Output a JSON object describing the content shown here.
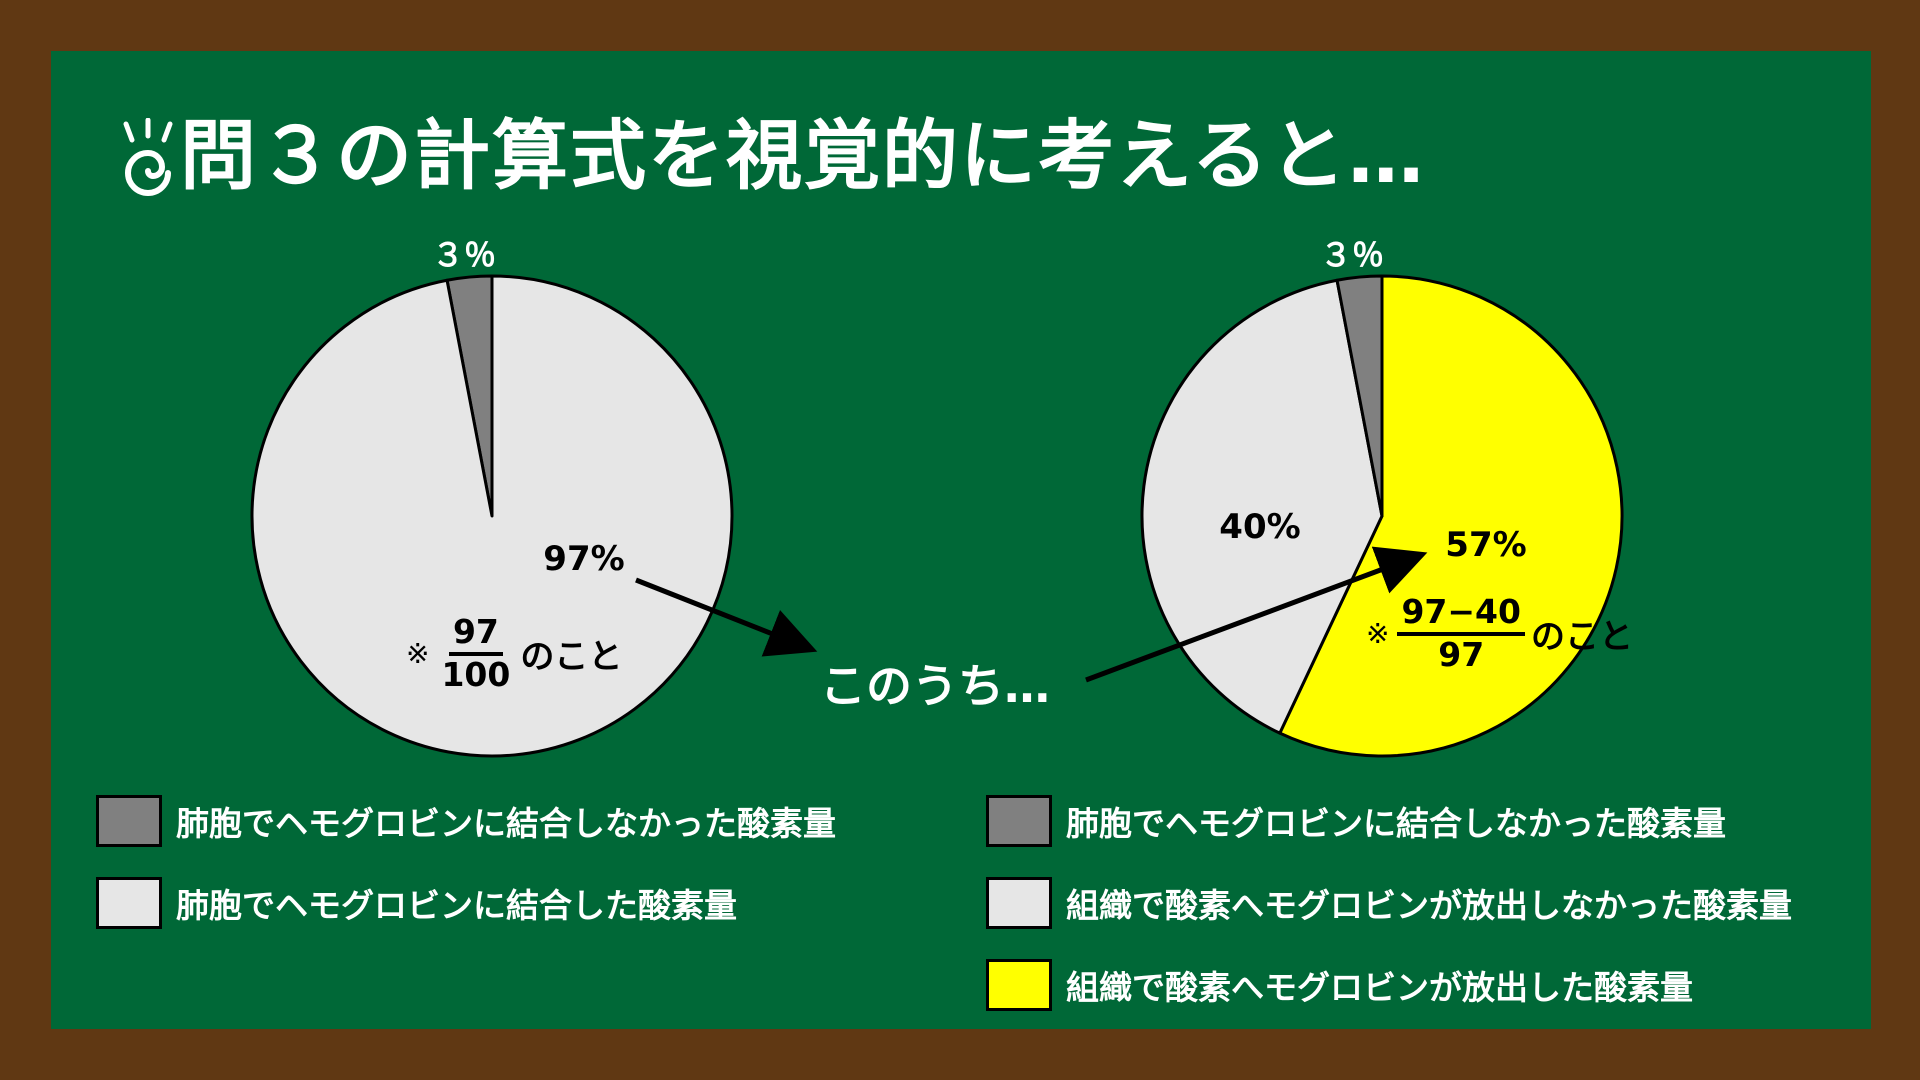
{
  "title": "問３の計算式を視覚的に考えると…",
  "center_text": "このうち…",
  "colors": {
    "board": "#006837",
    "frame": "#603813",
    "unbound": "#808080",
    "bound": "#e6e6e6",
    "released": "#ffff00"
  },
  "icons": {
    "title_icon": "idea-spiral-icon"
  },
  "chart_data": [
    {
      "type": "pie",
      "slices": [
        {
          "label": "肺胞でヘモグロビンに結合しなかった酸素量",
          "value": 3,
          "display": "３％",
          "color": "#808080"
        },
        {
          "label": "肺胞でヘモグロビンに結合した酸素量",
          "value": 97,
          "display": "97%",
          "color": "#e6e6e6"
        }
      ],
      "note": {
        "mark": "※",
        "numerator": "97",
        "denominator": "100",
        "suffix": "のこと"
      },
      "legend": [
        {
          "label": "肺胞でヘモグロビンに結合しなかった酸素量",
          "color": "#808080"
        },
        {
          "label": "肺胞でヘモグロビンに結合した酸素量",
          "color": "#e6e6e6"
        }
      ]
    },
    {
      "type": "pie",
      "slices": [
        {
          "label": "組織で酸素へモグロビンが放出した酸素量",
          "value": 57,
          "display": "57%",
          "color": "#ffff00"
        },
        {
          "label": "組織で酸素へモグロビンが放出しなかった酸素量",
          "value": 40,
          "display": "40%",
          "color": "#e6e6e6"
        },
        {
          "label": "肺胞でヘモグロビンに結合しなかった酸素量",
          "value": 3,
          "display": "３％",
          "color": "#808080"
        }
      ],
      "note": {
        "mark": "※",
        "numerator": "97−40",
        "denominator": "97",
        "suffix": "のこと"
      },
      "legend": [
        {
          "label": "肺胞でヘモグロビンに結合しなかった酸素量",
          "color": "#808080"
        },
        {
          "label": "組織で酸素へモグロビンが放出しなかった酸素量",
          "color": "#e6e6e6"
        },
        {
          "label": "組織で酸素へモグロビンが放出した酸素量",
          "color": "#ffff00"
        }
      ]
    }
  ]
}
